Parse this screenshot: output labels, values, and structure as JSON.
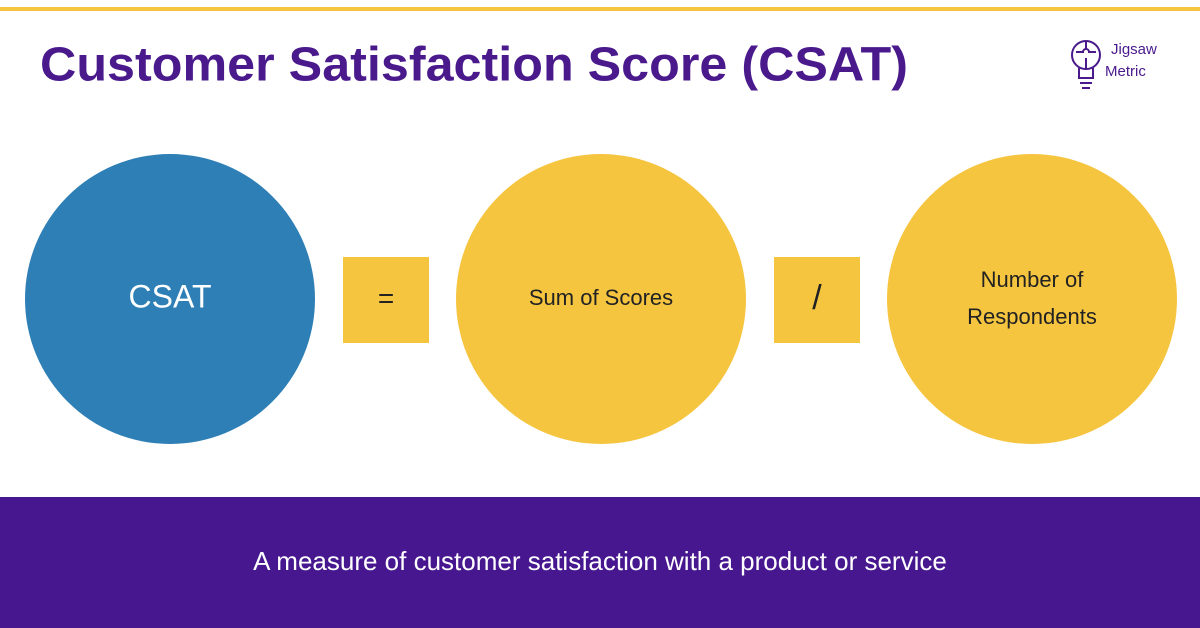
{
  "header": {
    "title": "Customer Satisfaction Score (CSAT)"
  },
  "logo": {
    "lines": [
      "Jigsaw",
      "Metric"
    ]
  },
  "formula": {
    "result": {
      "label": "CSAT"
    },
    "equals": {
      "label": "="
    },
    "numerator": {
      "label": "Sum of Scores"
    },
    "divide": {
      "label": "/"
    },
    "denominator": {
      "lines": [
        "Number of",
        "Respondents"
      ]
    }
  },
  "footer": {
    "text": "A measure of customer satisfaction with a product or service"
  }
}
